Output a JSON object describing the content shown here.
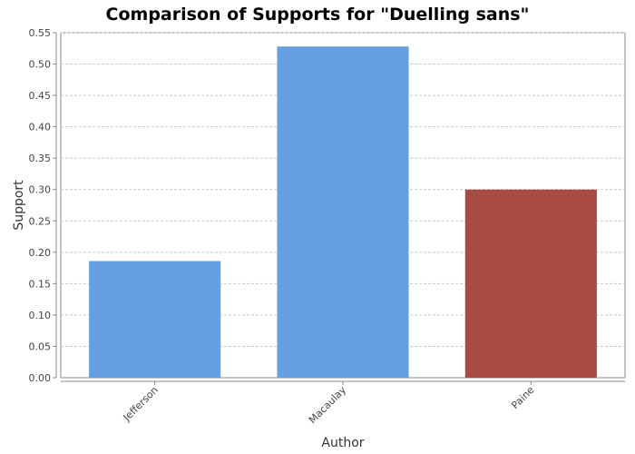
{
  "chart_data": {
    "type": "bar",
    "title": "Comparison of Supports for \"Duelling sans\"",
    "xlabel": "Author",
    "ylabel": "Support",
    "categories": [
      "Jefferson",
      "Macaulay",
      "Paine"
    ],
    "values": [
      0.186,
      0.528,
      0.3
    ],
    "bar_colors": [
      "#67a0e0",
      "#67a0e0",
      "#a84b45"
    ],
    "ylim": [
      0,
      0.55
    ],
    "yticks": [
      "0.00",
      "0.05",
      "0.10",
      "0.15",
      "0.20",
      "0.25",
      "0.30",
      "0.35",
      "0.40",
      "0.45",
      "0.50",
      "0.55"
    ],
    "grid": true,
    "legend": "none"
  }
}
